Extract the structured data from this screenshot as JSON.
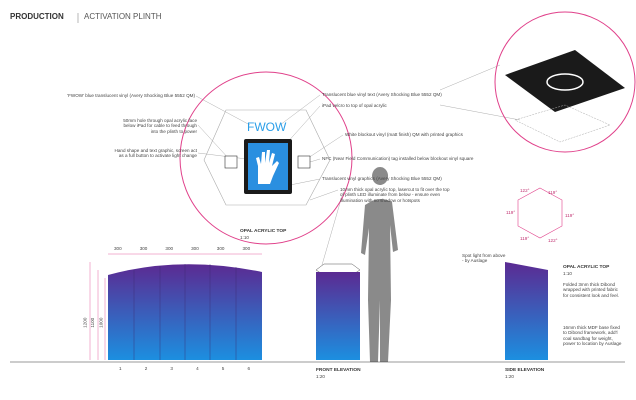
{
  "header": {
    "title": "PRODUCTION",
    "subtitle": "ACTIVATION PLINTH"
  },
  "callouts_left": [
    "'FWOW' blue translucent vinyl (Avery Shocking Blue 5552 QM)",
    "50mm hole through opal acrylic face below iPad for cable to feed through into the plinth to power",
    "Hand shape and text graphic, screen act as a full button to activate light change"
  ],
  "callouts_right": [
    "Translucent blue vinyl text (Avery Shocking Blue 5552 QM)",
    "iPad velcro to top of opal acrylic",
    "White blockout vinyl (matt finish) QM with printed graphics",
    "NFC (Near Field Communication) tag installed below blockout vinyl square",
    "Translucent vinyl graphics (Avery Shocking Blue 5552 QM)",
    "10mm thick opal acrylic top, lasercut to fit over the top of plinth LED illuminate from below - ensure even illumination with no shadow or hotspots"
  ],
  "screen": {
    "text": "FWOW"
  },
  "plan": {
    "title": "OPAL ACRYLIC TOP",
    "scale": "1:10",
    "widths": [
      300,
      300,
      300,
      300,
      300,
      300
    ],
    "heights": [
      1200,
      1100,
      1000
    ],
    "panels": [
      1,
      2,
      3,
      4,
      5,
      6
    ]
  },
  "front": {
    "title": "FRONT ELEVATION",
    "scale": "1:20"
  },
  "side": {
    "title": "SIDE ELEVATION",
    "scale": "1:20",
    "top_title": "OPAL ACRYLIC TOP",
    "top_scale": "1:10",
    "notes": [
      "Spot light from above - by Auslage",
      "Folded 3mm thick Dibond wrapped with printed fabric for consistent look and feel.",
      "16mm thick MDF base fixed to Dibond framework, add'l coal sandbag for weight, power to location by Auslage"
    ],
    "angles": [
      "119°",
      "122°",
      "119°",
      "119°",
      "122°",
      "119°"
    ]
  }
}
